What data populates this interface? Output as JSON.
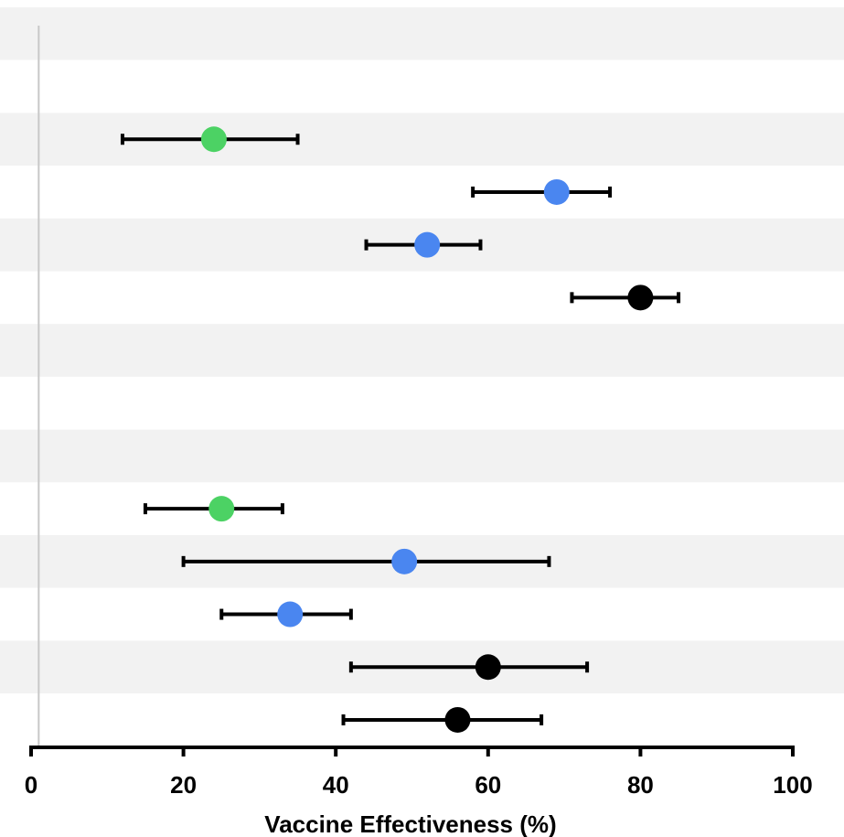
{
  "chart_data": {
    "type": "scatter",
    "subtype": "forest-plot",
    "title": "",
    "xlabel": "Vaccine Effectiveness (%)",
    "ylabel": "",
    "xlim": [
      0,
      100
    ],
    "xticks": [
      0,
      20,
      40,
      60,
      80,
      100
    ],
    "reference_line_x": 1,
    "row_count": 14,
    "row_band_colors": [
      "#f2f2f2",
      "#ffffff"
    ],
    "points": [
      {
        "row": 3,
        "estimate": 24,
        "lower": 12,
        "upper": 35,
        "color": "#4cd264"
      },
      {
        "row": 4,
        "estimate": 69,
        "lower": 58,
        "upper": 76,
        "color": "#4a86f0"
      },
      {
        "row": 5,
        "estimate": 52,
        "lower": 44,
        "upper": 59,
        "color": "#4a86f0"
      },
      {
        "row": 6,
        "estimate": 80,
        "lower": 71,
        "upper": 85,
        "color": "#000000"
      },
      {
        "row": 10,
        "estimate": 25,
        "lower": 15,
        "upper": 33,
        "color": "#4cd264"
      },
      {
        "row": 11,
        "estimate": 49,
        "lower": 20,
        "upper": 68,
        "color": "#4a86f0"
      },
      {
        "row": 12,
        "estimate": 34,
        "lower": 25,
        "upper": 42,
        "color": "#4a86f0"
      },
      {
        "row": 13,
        "estimate": 60,
        "lower": 42,
        "upper": 73,
        "color": "#000000"
      },
      {
        "row": 14,
        "estimate": 56,
        "lower": 41,
        "upper": 67,
        "color": "#000000"
      }
    ]
  }
}
